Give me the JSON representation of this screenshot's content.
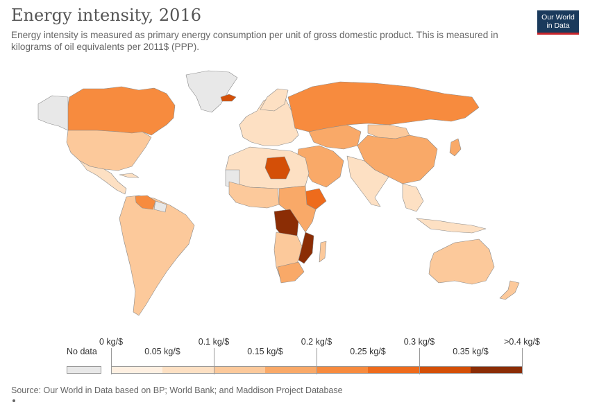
{
  "header": {
    "title": "Energy intensity, 2016",
    "subtitle": "Energy intensity is measured as primary energy consumption per unit of gross domestic product. This is measured in kilograms of oil equivalents per 2011$ (PPP).",
    "logo_line1": "Our World",
    "logo_line2": "in Data"
  },
  "legend": {
    "no_data_label": "No data",
    "no_data_color": "#e8e8e8",
    "top_labels": [
      "0 kg/$",
      "0.1 kg/$",
      "0.2 kg/$",
      "0.3 kg/$",
      ">0.4 kg/$"
    ],
    "bottom_labels": [
      "0.05 kg/$",
      "0.15 kg/$",
      "0.25 kg/$",
      "0.35 kg/$"
    ],
    "bins": [
      "#fef0e2",
      "#fde0c3",
      "#fcc99b",
      "#f9a968",
      "#f78b3e",
      "#ee6b1c",
      "#d44f07",
      "#8b2d05"
    ]
  },
  "map_colors": {
    "north_america": "#f78b3e",
    "usa": "#fcc99b",
    "mexico_central": "#fde0c3",
    "south_america": "#fcc99b",
    "venezuela": "#f78b3e",
    "greenland": "#e8e8e8",
    "iceland": "#d44f07",
    "europe": "#fde0c3",
    "russia": "#f78b3e",
    "central_asia": "#f9a968",
    "china": "#f9a968",
    "mongolia": "#fcc99b",
    "india": "#fde0c3",
    "middle_east": "#f9a968",
    "north_africa": "#fde0c3",
    "libya": "#d44f07",
    "west_africa": "#fcc99b",
    "ethiopia": "#ee6b1c",
    "drc": "#8b2d05",
    "mozambique": "#8b2d05",
    "southern_africa": "#f9a968",
    "southeast_asia": "#fde0c3",
    "australia": "#fcc99b",
    "nodata": "#e8e8e8"
  },
  "footer": {
    "source": "Source: Our World in Data based on BP; World Bank; and Maddison Project Database"
  }
}
